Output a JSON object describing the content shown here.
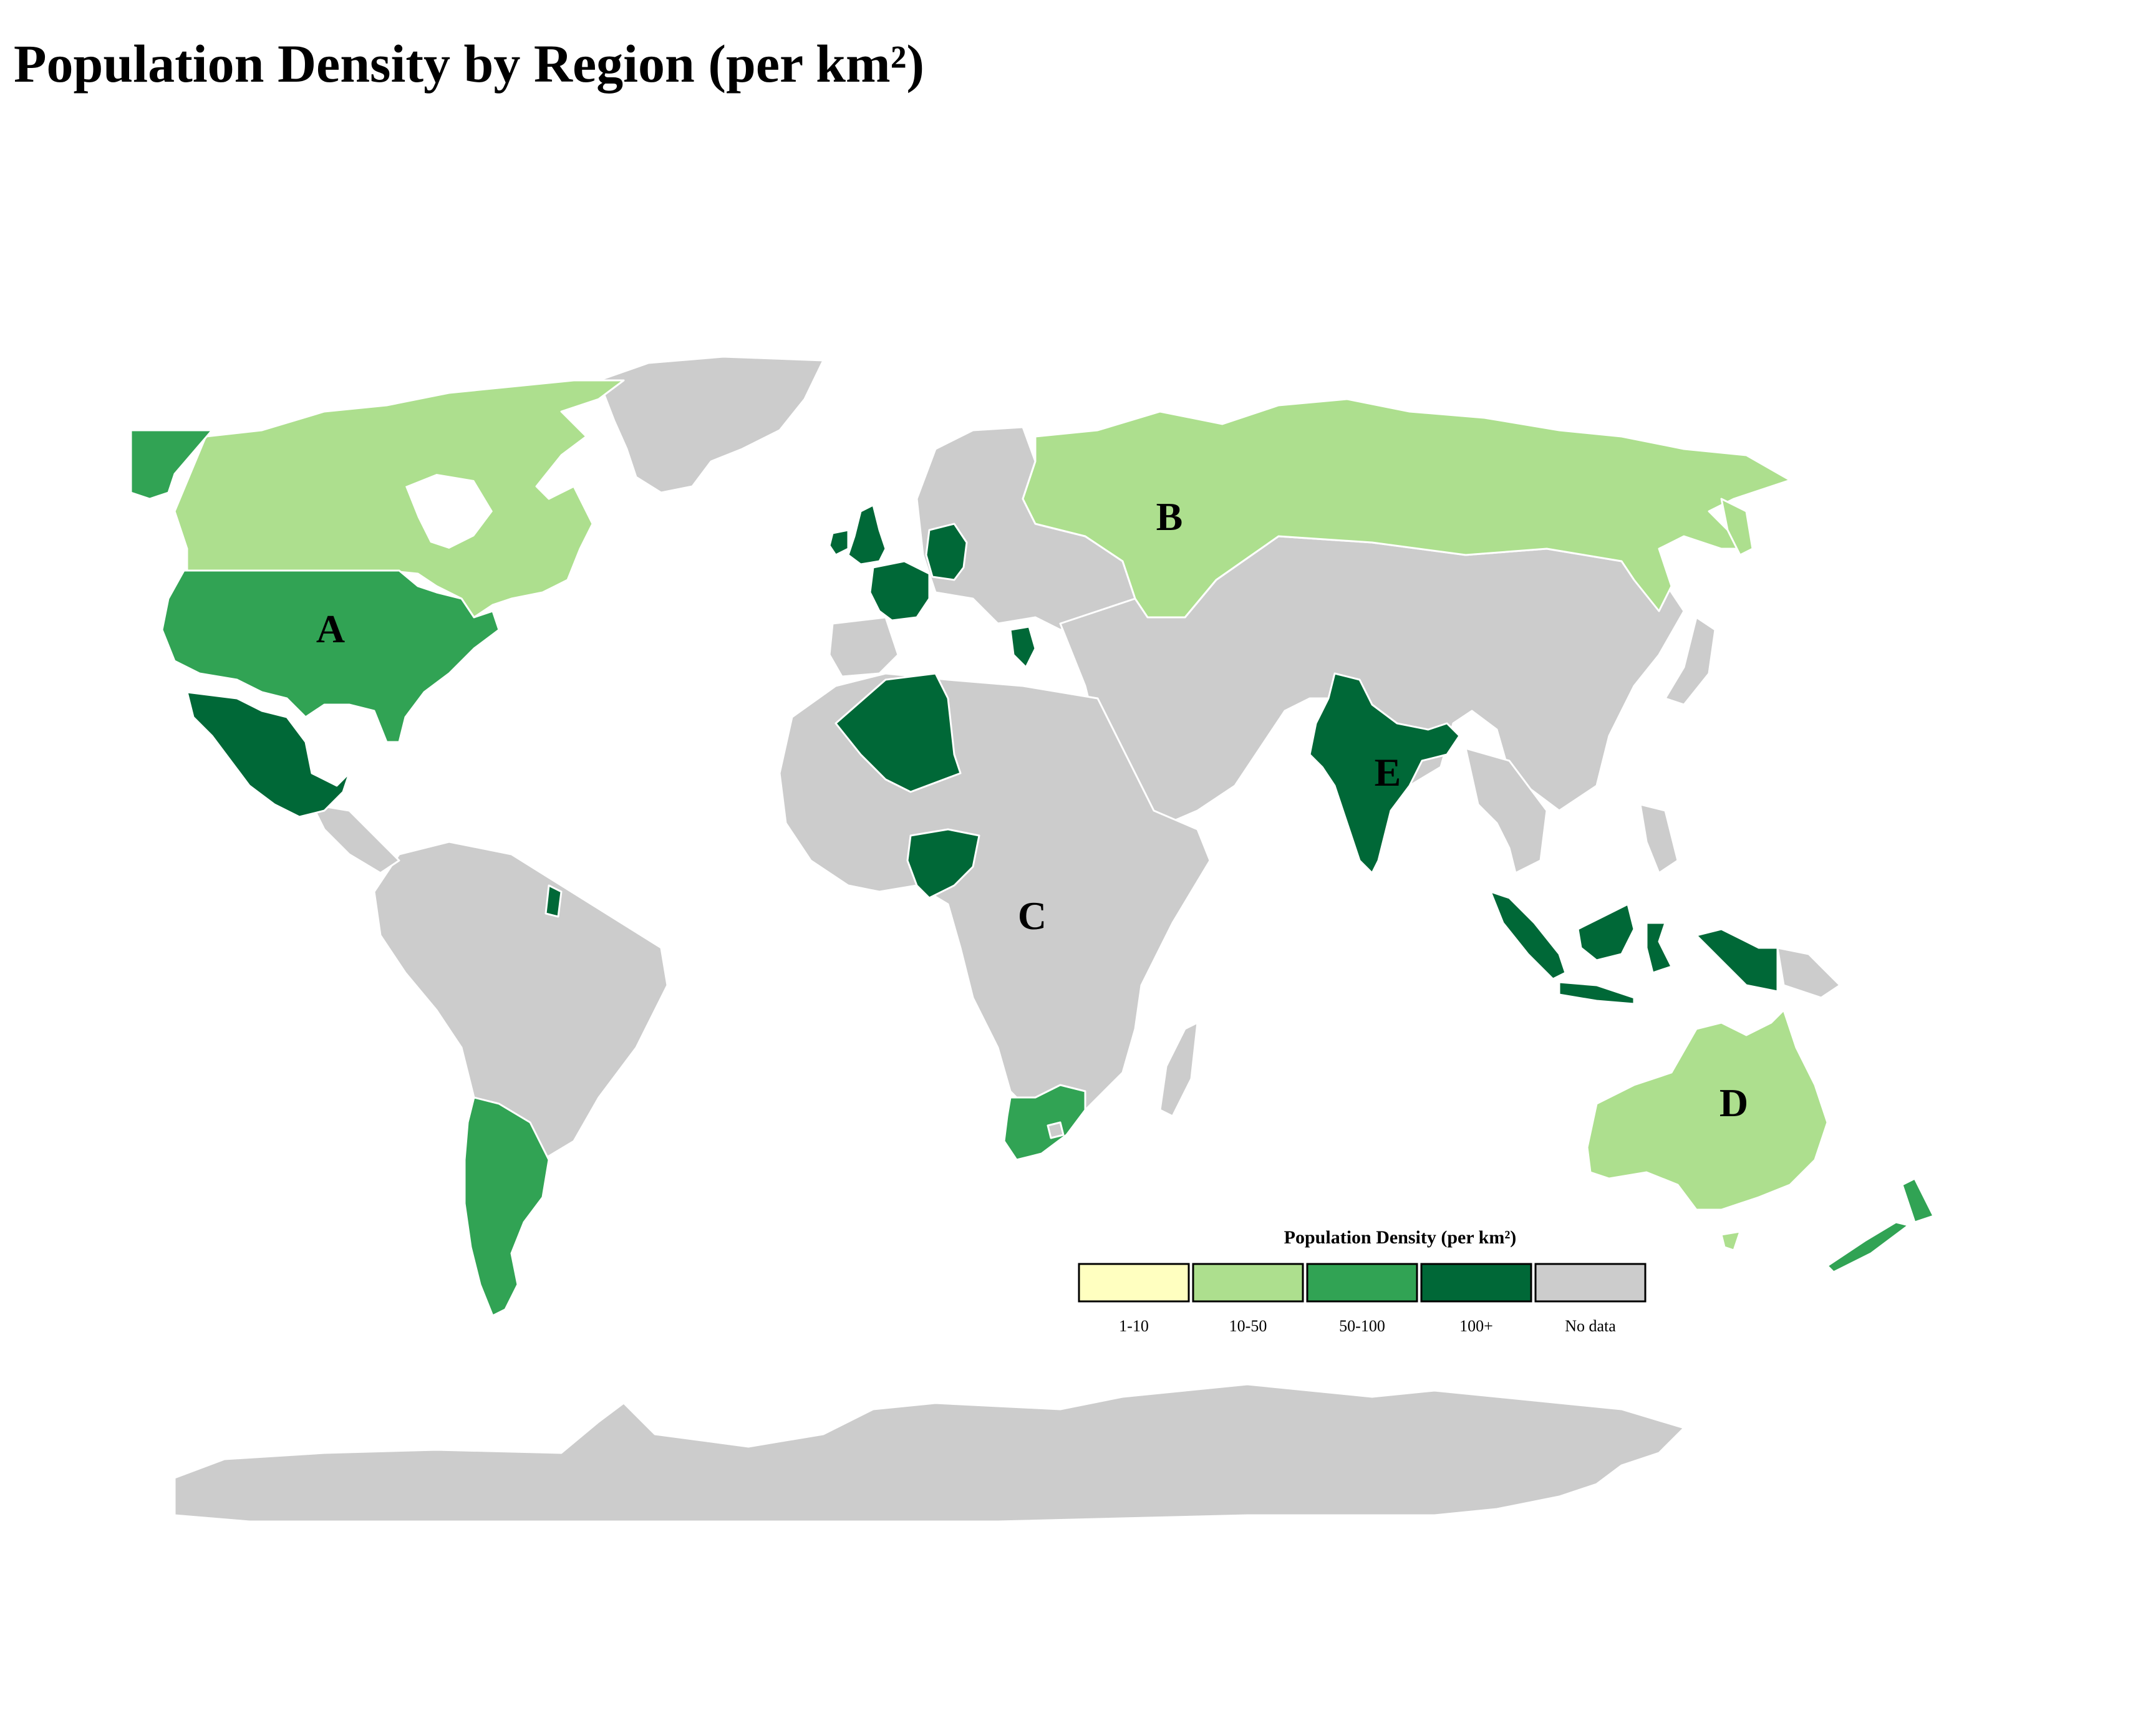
{
  "title": "Population Density by Region (per km²)",
  "colors": {
    "no_data": "#cccccc",
    "c1": "#ffffc0",
    "c2": "#addf8e",
    "c3": "#31a354",
    "c4": "#006837",
    "border": "#ffffff"
  },
  "regions": [
    {
      "label": "A",
      "area": "United States"
    },
    {
      "label": "B",
      "area": "Russia"
    },
    {
      "label": "C",
      "area": "Central Africa"
    },
    {
      "label": "D",
      "area": "Australia"
    },
    {
      "label": "E",
      "area": "India"
    }
  ],
  "legend": {
    "title": "Population Density (per km²)",
    "bins": [
      {
        "label": "1-10",
        "color": "#ffffc0"
      },
      {
        "label": "10-50",
        "color": "#addf8e"
      },
      {
        "label": "50-100",
        "color": "#31a354"
      },
      {
        "label": "100+",
        "color": "#006837"
      },
      {
        "label": "No data",
        "color": "#cccccc"
      }
    ]
  },
  "countries": [
    {
      "name": "Canada",
      "class": "10-50"
    },
    {
      "name": "Alaska",
      "class": "50-100"
    },
    {
      "name": "United States",
      "class": "50-100"
    },
    {
      "name": "Mexico",
      "class": "100+"
    },
    {
      "name": "Greenland",
      "class": "No data"
    },
    {
      "name": "Russia",
      "class": "10-50"
    },
    {
      "name": "United Kingdom",
      "class": "100+"
    },
    {
      "name": "France",
      "class": "100+"
    },
    {
      "name": "Germany",
      "class": "100+"
    },
    {
      "name": "Greece",
      "class": "100+"
    },
    {
      "name": "Algeria",
      "class": "100+"
    },
    {
      "name": "Nigeria",
      "class": "100+"
    },
    {
      "name": "South Africa",
      "class": "50-100"
    },
    {
      "name": "India",
      "class": "100+"
    },
    {
      "name": "Indonesia",
      "class": "100+"
    },
    {
      "name": "Australia",
      "class": "10-50"
    },
    {
      "name": "New Zealand",
      "class": "50-100"
    },
    {
      "name": "Argentina",
      "class": "50-100"
    },
    {
      "name": "French Guiana",
      "class": "100+"
    },
    {
      "name": "Antarctica",
      "class": "No data"
    }
  ]
}
